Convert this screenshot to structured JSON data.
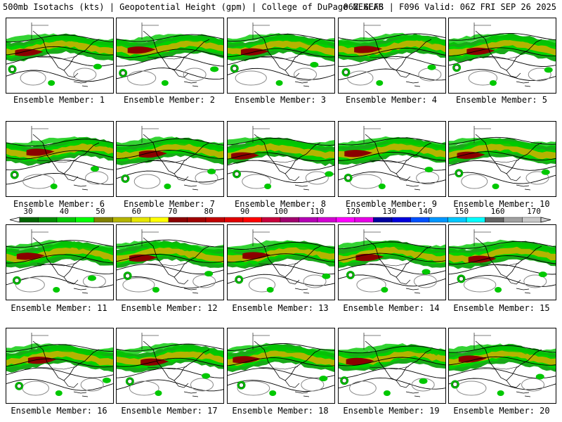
{
  "header": {
    "left": "500mb Isotachs (kts) | Geopotential Height (gpm) | College of DuPage NEXLAB",
    "right": "06Z GEFS | F096 Valid: 06Z FRI SEP 26 2025"
  },
  "caption_prefix": "Ensemble Member:",
  "members": [
    {
      "label": "Ensemble Member: 1"
    },
    {
      "label": "Ensemble Member: 2"
    },
    {
      "label": "Ensemble Member: 3"
    },
    {
      "label": "Ensemble Member: 4"
    },
    {
      "label": "Ensemble Member: 5"
    },
    {
      "label": "Ensemble Member: 6"
    },
    {
      "label": "Ensemble Member: 7"
    },
    {
      "label": "Ensemble Member: 8"
    },
    {
      "label": "Ensemble Member: 9"
    },
    {
      "label": "Ensemble Member: 10"
    },
    {
      "label": "Ensemble Member: 11"
    },
    {
      "label": "Ensemble Member: 12"
    },
    {
      "label": "Ensemble Member: 13"
    },
    {
      "label": "Ensemble Member: 14"
    },
    {
      "label": "Ensemble Member: 15"
    },
    {
      "label": "Ensemble Member: 16"
    },
    {
      "label": "Ensemble Member: 17"
    },
    {
      "label": "Ensemble Member: 18"
    },
    {
      "label": "Ensemble Member: 19"
    },
    {
      "label": "Ensemble Member: 20"
    }
  ],
  "colorbar": {
    "labels": [
      "30",
      "40",
      "50",
      "60",
      "70",
      "80",
      "90",
      "100",
      "110",
      "120",
      "130",
      "140",
      "150",
      "160",
      "170"
    ],
    "colors": [
      "#006400",
      "#008c00",
      "#00c800",
      "#00ff00",
      "#808000",
      "#b4b400",
      "#e6e600",
      "#ffff00",
      "#8b0000",
      "#a00000",
      "#c00000",
      "#e00000",
      "#ff0000",
      "#c8003c",
      "#a0006e",
      "#b400b4",
      "#d200d2",
      "#ff00ff",
      "#e600e6",
      "#0000a0",
      "#0000dc",
      "#0050ff",
      "#0096ff",
      "#00c8ff",
      "#00ffff",
      "#646464",
      "#a0a0a0",
      "#c8c8c8"
    ]
  }
}
